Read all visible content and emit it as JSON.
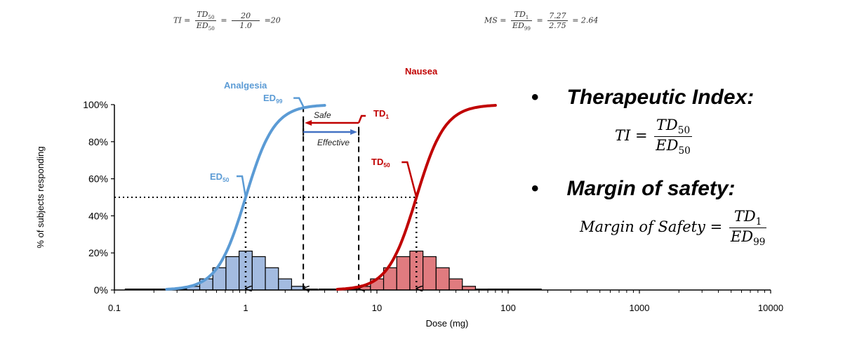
{
  "formulas_top": {
    "ti": {
      "lhs": "TI =",
      "num": "TD",
      "num_sub": "50",
      "den": "ED",
      "den_sub": "50",
      "eq": "=",
      "val_num": "20",
      "val_den": "1.0",
      "result": "=20"
    },
    "ms": {
      "lhs": "MS =",
      "num": "TD",
      "num_sub": "1",
      "den": "ED",
      "den_sub": "99",
      "eq": "=",
      "val_num": "7.27",
      "val_den": "2.75",
      "result": "= 2.64"
    }
  },
  "side_panel": {
    "bullet": "•",
    "ti_heading": "Therapeutic Index:",
    "ti_formula": {
      "lhs": "TI =",
      "num": "TD",
      "num_sub": "50",
      "den": "ED",
      "den_sub": "50"
    },
    "ms_heading": "Margin of safety:",
    "ms_formula": {
      "lhs": "Margin of Safety =",
      "num": "TD",
      "num_sub": "1",
      "den": "ED",
      "den_sub": "99"
    }
  },
  "chart_data": {
    "type": "line",
    "title": "",
    "xlabel": "Dose (mg)",
    "ylabel": "% of subjects responding",
    "xscale": "log",
    "xlim": [
      0.1,
      10000
    ],
    "ylim": [
      0,
      100
    ],
    "x_ticks": [
      "0.1",
      "1",
      "10",
      "100",
      "1000",
      "10000"
    ],
    "y_ticks": [
      "0%",
      "20%",
      "40%",
      "60%",
      "80%",
      "100%"
    ],
    "colors": {
      "analgesia": "#5b9bd5",
      "analgesia_bar": "#a3bbe0",
      "nausea": "#c00000",
      "nausea_bar": "#e07b7f",
      "effective_arrow": "#4472c4"
    },
    "series": [
      {
        "name": "Analgesia",
        "kind": "dose-response",
        "ed50": 1.0,
        "x_range": [
          0.25,
          4.0
        ]
      },
      {
        "name": "Nausea",
        "kind": "dose-response",
        "td50": 20,
        "x_range": [
          5,
          80
        ]
      }
    ],
    "histograms": [
      {
        "name": "Analgesia",
        "bin_log_width": 0.1,
        "center": 1.0,
        "values": [
          0.5,
          2,
          6,
          12,
          18,
          21,
          18,
          12,
          6,
          2,
          0.5
        ]
      },
      {
        "name": "Nausea",
        "bin_log_width": 0.1,
        "center": 20,
        "values": [
          0.5,
          2,
          6,
          12,
          18,
          21,
          18,
          12,
          6,
          2,
          0.5
        ]
      }
    ],
    "reference_lines": {
      "y50": 50,
      "ed50": 1.0,
      "td50": 20,
      "ed99": 2.75,
      "td1": 7.27
    },
    "annotations": {
      "analgesia": "Analgesia",
      "nausea": "Nausea",
      "ed99": "ED",
      "ed99_sub": "99",
      "ed50": "ED",
      "ed50_sub": "50",
      "td1": "TD",
      "td1_sub": "1",
      "td50": "TD",
      "td50_sub": "50",
      "safe": "Safe",
      "effective": "Effective"
    }
  }
}
